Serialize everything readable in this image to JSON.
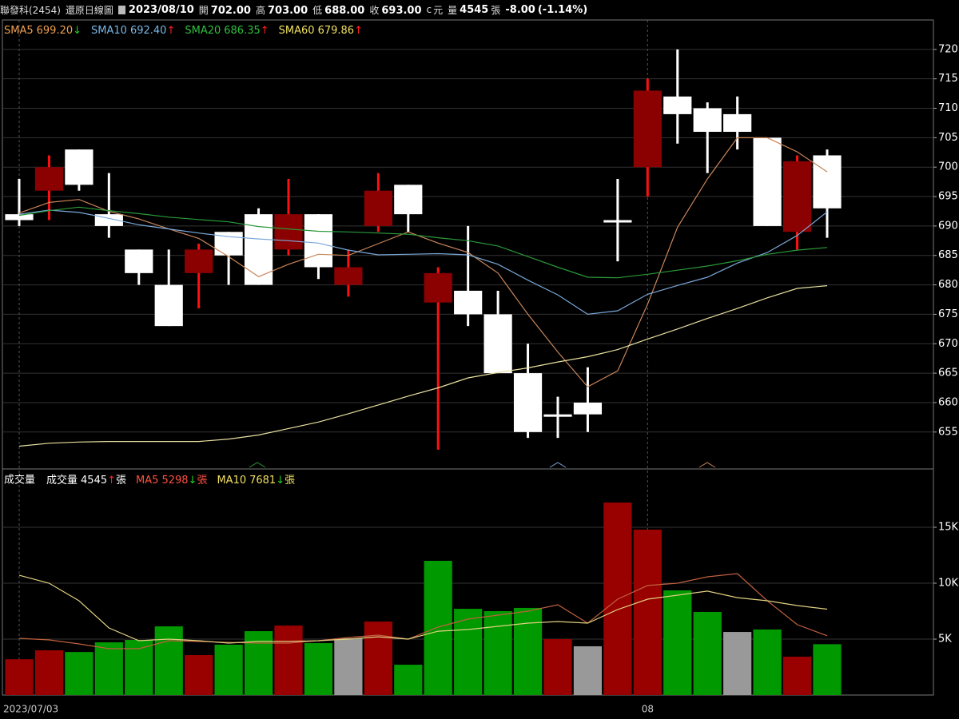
{
  "header": {
    "stock": "聯發科(2454)",
    "chart_type": "還原日線圖",
    "date": "2023/08/10",
    "fields": [
      {
        "label": "開",
        "value": "702.00"
      },
      {
        "label": "高",
        "value": "703.00"
      },
      {
        "label": "低",
        "value": "688.00"
      },
      {
        "label": "收",
        "value": "693.00"
      }
    ],
    "currency_marker": "c",
    "currency": "元",
    "volume_label": "量",
    "volume": "4545",
    "volume_unit": "張",
    "change": "-8.00",
    "change_pct": "(-1.14%)"
  },
  "chart_data": [
    {
      "type": "candlestick",
      "open": [
        692,
        696,
        703,
        692,
        686,
        680,
        682,
        689,
        692,
        686,
        692,
        680,
        690,
        697,
        677,
        679,
        675,
        665,
        658,
        660,
        691,
        700,
        712,
        710,
        709,
        705,
        689,
        702
      ],
      "high": [
        698,
        702,
        703,
        699,
        686,
        686,
        687,
        689,
        693,
        698,
        692,
        686,
        699,
        697,
        683,
        690,
        679,
        670,
        661,
        666,
        698,
        715,
        720,
        711,
        712,
        705,
        702,
        703
      ],
      "low": [
        690,
        691,
        696,
        688,
        680,
        673,
        676,
        680,
        680,
        685,
        681,
        678,
        689,
        689,
        652,
        673,
        665,
        654,
        654,
        655,
        684,
        695,
        704,
        699,
        703,
        690,
        686,
        688
      ],
      "close": [
        691,
        700,
        697,
        690,
        682,
        673,
        686,
        685,
        680,
        692,
        683,
        683,
        696,
        692,
        682,
        675,
        665,
        655,
        658,
        658,
        691,
        713,
        709,
        706,
        706,
        690,
        701,
        693
      ],
      "up_color": "#8b0000",
      "up_wick_color": "#ff1010",
      "down_color": "#ffffff",
      "down_wick_color": "#ffffff",
      "series": [
        {
          "name": "SMA5",
          "legend_value": "699.20",
          "legend_arrow": "↓",
          "color": "#c8855a",
          "label_color": "#f0a050",
          "values": [
            692.2,
            694,
            694.5,
            692.5,
            691.2,
            689.5,
            687.9,
            684.8,
            681.4,
            683.5,
            685.2,
            685,
            687,
            689,
            687.1,
            685.5,
            682,
            675,
            668.6,
            662.7,
            665.4,
            676.7,
            689.8,
            698,
            705,
            705,
            702.6,
            699.2
          ]
        },
        {
          "name": "SMA10",
          "legend_value": "692.40",
          "legend_arrow": "↑",
          "color": "#7aa8d8",
          "label_color": "#7ab8e8",
          "values": [
            692,
            692.7,
            692.3,
            691.3,
            690.2,
            689.5,
            688.8,
            688.2,
            687.8,
            687.5,
            687.1,
            685.9,
            685.1,
            685.2,
            685.3,
            685.1,
            683.5,
            680.8,
            678.3,
            675,
            675.6,
            678.4,
            679.9,
            681.3,
            683.7,
            685.5,
            688.4,
            692.4
          ]
        },
        {
          "name": "SMA20",
          "legend_value": "686.35",
          "legend_arrow": "↑",
          "color": "#2a9a3a",
          "label_color": "#30c040",
          "values": [
            691.8,
            692.6,
            693.2,
            692.6,
            692.1,
            691.5,
            691.1,
            690.7,
            689.9,
            689.5,
            689.1,
            689,
            688.8,
            688.6,
            688,
            687.5,
            686.6,
            684.8,
            683,
            681.3,
            681.2,
            681.8,
            682.5,
            683.2,
            684.1,
            685.2,
            685.9,
            686.35
          ]
        },
        {
          "name": "SMA60",
          "legend_value": "679.86",
          "legend_arrow": "↑",
          "color": "#e8e0a0",
          "label_color": "#f0e060",
          "values": [
            652.6,
            653.1,
            653.3,
            653.4,
            653.4,
            653.4,
            653.4,
            653.8,
            654.5,
            655.6,
            656.7,
            658.1,
            659.6,
            661.1,
            662.5,
            664.2,
            665.1,
            665.9,
            666.9,
            667.8,
            669,
            670.8,
            672.5,
            674.3,
            676,
            677.8,
            679.4,
            679.86
          ]
        }
      ],
      "ylim": [
        649,
        725
      ],
      "yticks": [
        655,
        660,
        665,
        670,
        675,
        680,
        685,
        690,
        695,
        700,
        705,
        710,
        715,
        720
      ],
      "grid": true
    },
    {
      "type": "bar",
      "panel_label": "成交量",
      "categories": [
        "2023/07/03",
        null,
        null,
        null,
        null,
        null,
        null,
        null,
        null,
        null,
        null,
        null,
        null,
        null,
        null,
        null,
        null,
        null,
        null,
        null,
        null,
        "08",
        null,
        null,
        null,
        null,
        null,
        null
      ],
      "series": [
        {
          "name": "成交量",
          "type": "bar",
          "legend_value": "4545",
          "legend_arrow": "↑",
          "legend_unit": "張",
          "label_color": "#ffffff",
          "values": [
            3200,
            4000,
            3850,
            4710,
            4930,
            6140,
            3570,
            4500,
            5710,
            6210,
            4640,
            5070,
            6570,
            2710,
            12000,
            7710,
            7500,
            7790,
            5000,
            4360,
            17210,
            14790,
            9360,
            7430,
            5640,
            5860,
            3430,
            4545
          ],
          "colors": [
            "#990000",
            "#990000",
            "#009900",
            "#009900",
            "#009900",
            "#009900",
            "#990000",
            "#009900",
            "#009900",
            "#990000",
            "#009900",
            "#999999",
            "#990000",
            "#009900",
            "#009900",
            "#009900",
            "#009900",
            "#009900",
            "#990000",
            "#999999",
            "#990000",
            "#990000",
            "#009900",
            "#009900",
            "#999999",
            "#009900",
            "#990000",
            "#009900"
          ]
        },
        {
          "name": "MA5",
          "type": "line",
          "legend_value": "5298",
          "legend_arrow": "↓",
          "legend_unit": "張",
          "color": "#c06040",
          "label_color": "#ff5040",
          "values": [
            5070,
            4930,
            4570,
            4140,
            4140,
            4860,
            4790,
            4710,
            4640,
            4640,
            4860,
            5140,
            5360,
            5000,
            6070,
            6790,
            7140,
            7500,
            8070,
            6430,
            8570,
            9790,
            10000,
            10570,
            10860,
            8430,
            6290,
            5298
          ]
        },
        {
          "name": "MA10",
          "type": "line",
          "legend_value": "7681",
          "legend_arrow": "↓",
          "legend_unit": "張",
          "color": "#e0d080",
          "label_color": "#f0e060",
          "values": [
            10710,
            10000,
            8430,
            6000,
            4860,
            5000,
            4860,
            4640,
            4790,
            4790,
            4860,
            5000,
            5210,
            5000,
            5710,
            5860,
            6140,
            6430,
            6570,
            6430,
            7640,
            8570,
            8930,
            9290,
            8710,
            8430,
            8000,
            7681
          ]
        }
      ],
      "ylim": [
        0,
        20000
      ],
      "yticks": [
        {
          "value": 5000,
          "label": "5K"
        },
        {
          "value": 10000,
          "label": "10K"
        },
        {
          "value": 15000,
          "label": "15K"
        }
      ],
      "grid": true
    }
  ]
}
